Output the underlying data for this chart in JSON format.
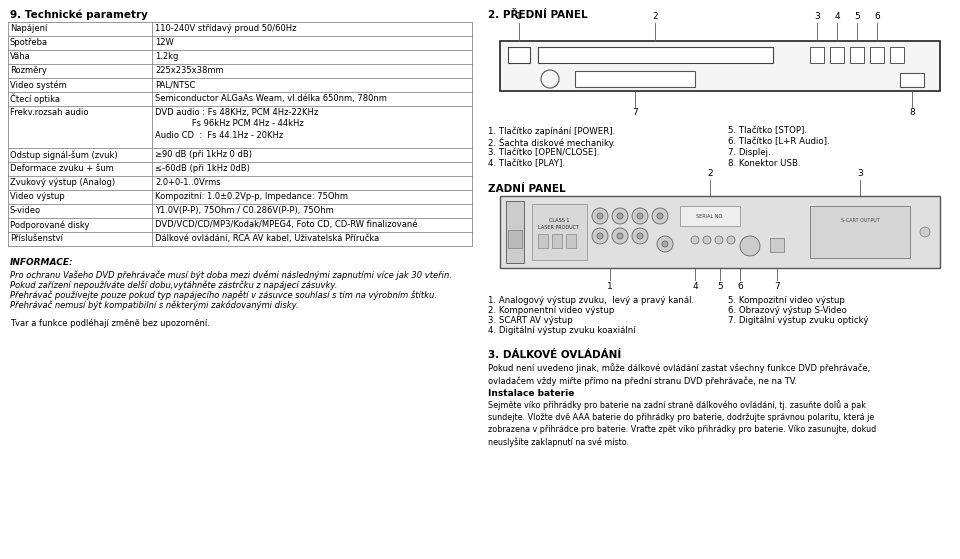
{
  "bg_color": "#ffffff",
  "text_color": "#000000",
  "title_left": "9. Technické parametry",
  "title_right_1": "2. PŘEDNÍ PANEL",
  "title_right_2": "ZADNÍ PANEL",
  "table_rows": [
    [
      "Napájení",
      "110-240V střídavý proud 50/60Hz"
    ],
    [
      "Spotřeba",
      "12W"
    ],
    [
      "Váha",
      "1.2kg"
    ],
    [
      "Rozměry",
      "225x235x38mm"
    ],
    [
      "Video systém",
      "PAL/NTSC"
    ],
    [
      "Čtecí optika",
      "Semiconductor ALGaAs Weam, vl.délka 650nm, 780nm"
    ],
    [
      "Frekv.rozsah audio",
      "DVD audio : Fs 48KHz, PCM 4Hz-22KHz\n              Fs 96kHz PCM 4Hz - 44kHz\nAudio CD  :  Fs 44.1Hz - 20KHz"
    ],
    [
      "Odstup signál-šum (zvuk)",
      "≥90 dB (při 1kHz 0 dB)"
    ],
    [
      "Deformace zvuku + šum",
      "≤-60dB (při 1kHz 0dB)"
    ],
    [
      "Zvukový výstup (Analog)",
      "2.0+0-1..0Vrms"
    ],
    [
      "Video výstup",
      "Kompozitní: 1.0±0.2Vp-p, Impedance: 75Ohm"
    ],
    [
      "S-video",
      "Y1.0V(P-P), 75Ohm / C0.286V(P-P), 75Ohm"
    ],
    [
      "Podporované disky",
      "DVD/VCD/CD/MP3/Kodak/MPEG4, Foto CD, CD-RW finalizované"
    ],
    [
      "Příslušenství",
      "Dálkové ovládání, RCA AV kabel, Uživatelská Příručka"
    ]
  ],
  "info_title": "INFORMACE:",
  "info_lines": [
    "Pro ochranu Vašeho DVD přehrávače musí být doba mezi dvěmi následnými zapnutími více jak 30 vteřin.",
    "Pokud zařízení nepoužíváte delší dobu,vytáhněte zástrčku z napájecí zásuvky.",
    "Přehrávač používejte pouze pokud typ napájecího napětí v zásuvce souhlasí s tím na výrobním štítku.",
    "Přehrávač nemusí být kompatibilní s některými zakódovanými disky."
  ],
  "tvar_line": "Tvar a funkce podléhají změně bez upozornění.",
  "front_items_left": [
    "1. Tlačítko zapínání [POWER].",
    "2. Šachta diskové mechaniky.",
    "3. Tlačítko [OPEN/CLOSE].",
    "4. Tlačítko [PLAY]."
  ],
  "front_items_right": [
    "5. Tlačítko [STOP].",
    "6. Tlačítko [L+R Audio].",
    "7. Displej.",
    "8. Konektor USB."
  ],
  "back_items_left": [
    "1. Analogový výstup zvuku,  levý a pravý kanál.",
    "2. Komponentní video výstup",
    "3. SCART AV výstup",
    "4. Digitální výstup zvuku koaxiální"
  ],
  "back_items_right": [
    "5. Kompozitní video výstup",
    "6. Obrazový výstup S-Video",
    "7. Digitální výstup zvuku optický",
    ""
  ],
  "dalkove_title": "3. DÁLKOVÉ OVLÁDÁNÍ",
  "dalkove_text": "Pokud není uvedeno jinak, může dálkové ovládání zastat všechny funkce DVD přehrávače,\novladačem vždy miřte přímo na přední stranu DVD přehrávače, ne na TV.",
  "instal_title": "Instalace baterie",
  "instal_text": "Sejměte víko přihrádky pro baterie na zadní straně dálkového ovládání, tj. zasuňte dolů a pak\nsundejte. Vložte dvě AAA baterie do přihrádky pro baterie, dodržujte správnou polaritu, která je\nzobrazena v přihrádce pro baterie. Vraťte zpět víko přihrádky pro baterie. Víko zasunujte, dokud\nneuslyšíte zaklapnutí na své místo."
}
